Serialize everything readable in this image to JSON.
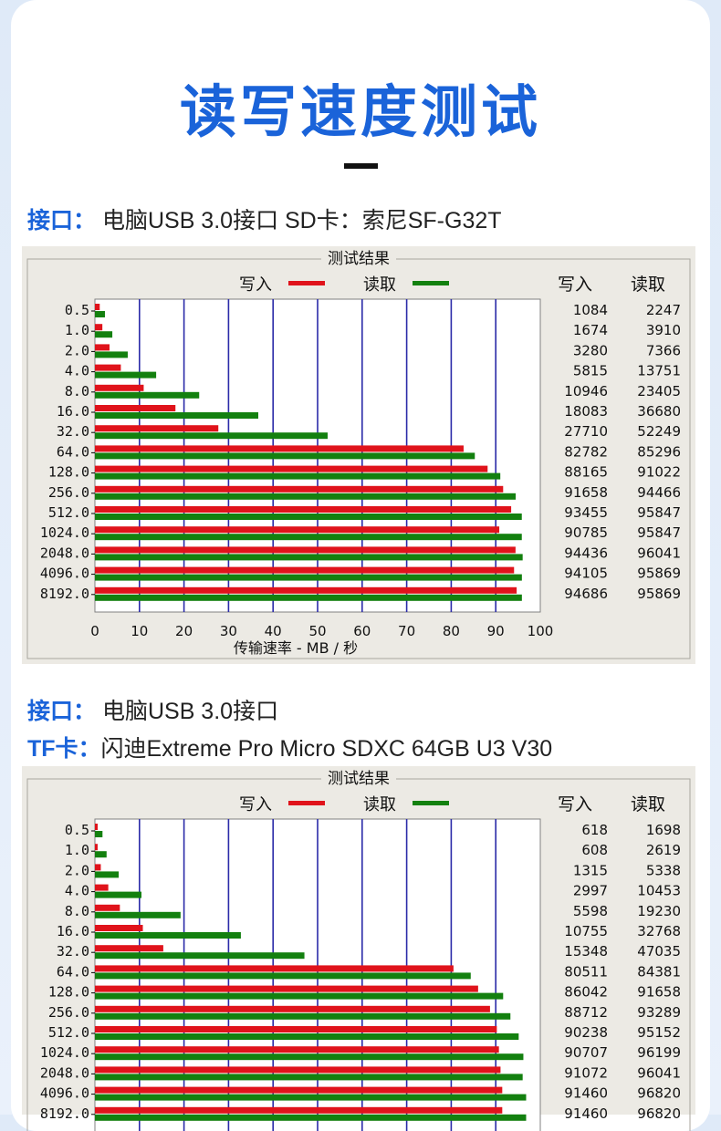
{
  "title": "读写速度测试",
  "section1": {
    "iface_key": "接口：",
    "iface_val": " 电脑USB 3.0接口  SD卡：索尼SF-G32T"
  },
  "section2": {
    "iface_key": "接口：",
    "iface_val": " 电脑USB 3.0接口",
    "card_key": "TF卡：",
    "card_val": "闪迪Extreme Pro Micro SDXC 64GB U3 V30"
  },
  "colors": {
    "write": "#e0131b",
    "read": "#13800f",
    "grid": "#2b2ba8",
    "accent": "#1a63d9"
  },
  "chart_data": [
    {
      "type": "bar",
      "title": "测试结果",
      "legend": [
        "写入",
        "读取"
      ],
      "xlabel": "传输速率 - MB / 秒",
      "xlim": [
        0,
        100
      ],
      "xticks": [
        "0",
        "10",
        "20",
        "30",
        "40",
        "50",
        "60",
        "70",
        "80",
        "90",
        "100"
      ],
      "categories": [
        "0.5",
        "1.0",
        "2.0",
        "4.0",
        "8.0",
        "16.0",
        "32.0",
        "64.0",
        "128.0",
        "256.0",
        "512.0",
        "1024.0",
        "2048.0",
        "4096.0",
        "8192.0"
      ],
      "table_headers": [
        "写入",
        "读取"
      ],
      "series": [
        {
          "name": "写入",
          "values": [
            1.08,
            1.67,
            3.28,
            5.82,
            10.95,
            18.08,
            27.71,
            82.78,
            88.17,
            91.66,
            93.46,
            90.79,
            94.44,
            94.11,
            94.69
          ],
          "labels": [
            "1084",
            "1674",
            "3280",
            "5815",
            "10946",
            "18083",
            "27710",
            "82782",
            "88165",
            "91658",
            "93455",
            "90785",
            "94436",
            "94105",
            "94686"
          ]
        },
        {
          "name": "读取",
          "values": [
            2.25,
            3.91,
            7.37,
            13.75,
            23.41,
            36.68,
            52.25,
            85.3,
            91.02,
            94.47,
            95.85,
            95.85,
            96.04,
            95.87,
            95.87
          ],
          "labels": [
            "2247",
            "3910",
            "7366",
            "13751",
            "23405",
            "36680",
            "52249",
            "85296",
            "91022",
            "94466",
            "95847",
            "95847",
            "96041",
            "95869",
            "95869"
          ]
        }
      ]
    },
    {
      "type": "bar",
      "title": "测试结果",
      "legend": [
        "写入",
        "读取"
      ],
      "xlim": [
        0,
        100
      ],
      "categories": [
        "0.5",
        "1.0",
        "2.0",
        "4.0",
        "8.0",
        "16.0",
        "32.0",
        "64.0",
        "128.0",
        "256.0",
        "512.0",
        "1024.0",
        "2048.0",
        "4096.0",
        "8192.0"
      ],
      "table_headers": [
        "写入",
        "读取"
      ],
      "series": [
        {
          "name": "写入",
          "values": [
            0.62,
            0.61,
            1.32,
            3.0,
            5.6,
            10.76,
            15.35,
            80.51,
            86.04,
            88.71,
            90.24,
            90.71,
            91.07,
            91.46,
            91.46
          ],
          "labels": [
            "618",
            "608",
            "1315",
            "2997",
            "5598",
            "10755",
            "15348",
            "80511",
            "86042",
            "88712",
            "90238",
            "90707",
            "91072",
            "91460",
            "91460"
          ]
        },
        {
          "name": "读取",
          "values": [
            1.7,
            2.62,
            5.34,
            10.45,
            19.23,
            32.77,
            47.04,
            84.38,
            91.66,
            93.29,
            95.15,
            96.2,
            96.04,
            96.82,
            96.82
          ],
          "labels": [
            "1698",
            "2619",
            "5338",
            "10453",
            "19230",
            "32768",
            "47035",
            "84381",
            "91658",
            "93289",
            "95152",
            "96199",
            "96041",
            "96820",
            "96820"
          ]
        }
      ]
    }
  ]
}
